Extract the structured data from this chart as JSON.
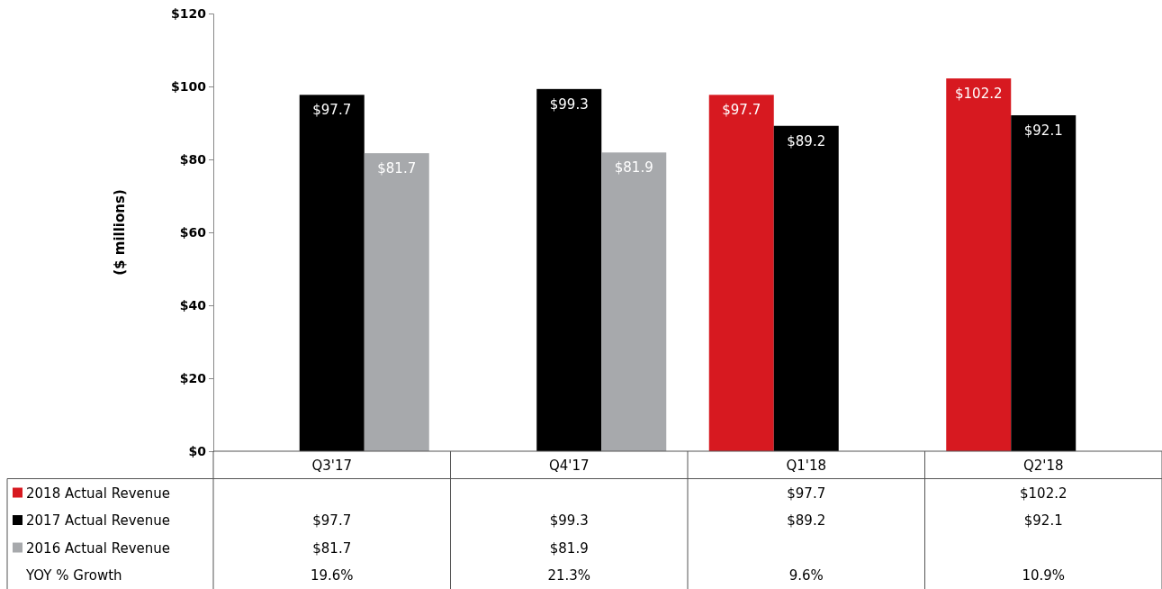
{
  "chart_data": {
    "type": "bar",
    "ylabel": "($ millions)",
    "categories": [
      "Q3'17",
      "Q4'17",
      "Q1'18",
      "Q2'18"
    ],
    "series": [
      {
        "name": "2018 Actual Revenue",
        "color": "#d71920",
        "values": [
          null,
          null,
          97.7,
          102.2
        ],
        "value_labels": [
          null,
          null,
          "$97.7",
          "$102.2"
        ]
      },
      {
        "name": "2017 Actual Revenue",
        "color": "#000000",
        "values": [
          97.7,
          99.3,
          89.2,
          92.1
        ],
        "value_labels": [
          "$97.7",
          "$99.3",
          "$89.2",
          "$92.1"
        ]
      },
      {
        "name": "2016 Actual Revenue",
        "color": "#a7a9ac",
        "values": [
          81.7,
          81.9,
          null,
          null
        ],
        "value_labels": [
          "$81.7",
          "$81.9",
          null,
          null
        ]
      }
    ],
    "ylim": [
      0,
      120
    ],
    "yticks": [
      {
        "value": 0,
        "label": "$0"
      },
      {
        "value": 20,
        "label": "$20"
      },
      {
        "value": 40,
        "label": "$40"
      },
      {
        "value": 60,
        "label": "$60"
      },
      {
        "value": 80,
        "label": "$80"
      },
      {
        "value": 100,
        "label": "$100"
      },
      {
        "value": 120,
        "label": "$120"
      }
    ],
    "legend": "bottom",
    "annotations": [
      "YOY % Growth",
      "19.6%",
      "21.3%",
      "9.6%",
      "10.9%"
    ]
  }
}
